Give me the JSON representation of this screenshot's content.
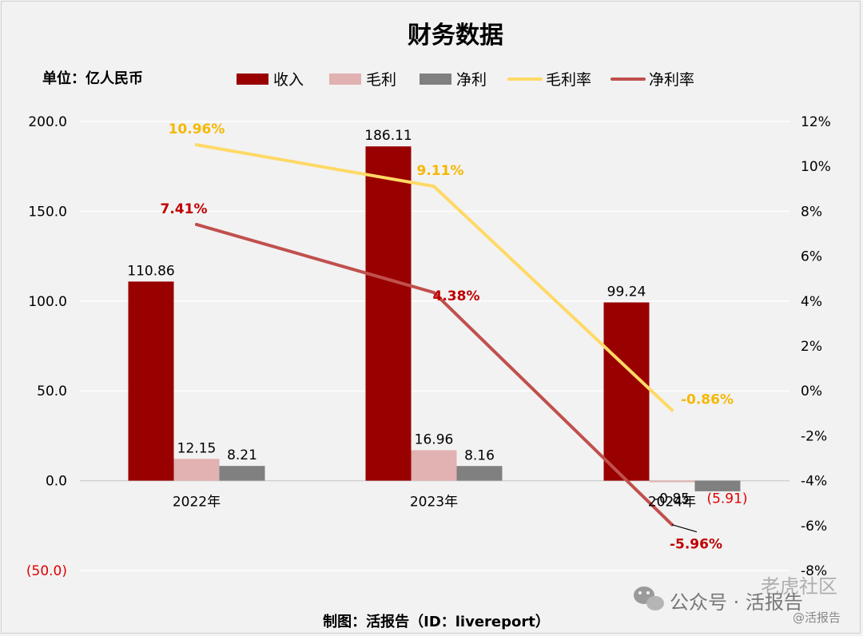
{
  "chart_data": {
    "type": "bar",
    "title": "财务数据",
    "unit_label": "单位：亿人民币",
    "categories": [
      "2022年",
      "2023年",
      "2024年"
    ],
    "series": [
      {
        "name": "收入",
        "kind": "bar",
        "axis": "left",
        "color": "#990000",
        "values": [
          110.86,
          186.11,
          99.24
        ],
        "labels": [
          "110.86",
          "186.11",
          "99.24"
        ]
      },
      {
        "name": "毛利",
        "kind": "bar",
        "axis": "left",
        "color": "#e2b1b1",
        "values": [
          12.15,
          16.96,
          -0.85
        ],
        "labels": [
          "12.15",
          "16.96",
          "-0.85"
        ]
      },
      {
        "name": "净利",
        "kind": "bar",
        "axis": "left",
        "color": "#808080",
        "values": [
          8.21,
          8.16,
          -5.91
        ],
        "labels": [
          "8.21",
          "8.16",
          "(5.91)"
        ]
      },
      {
        "name": "毛利率",
        "kind": "line",
        "axis": "right",
        "color": "#ffd966",
        "values": [
          10.96,
          9.11,
          -0.86
        ],
        "labels": [
          "10.96%",
          "9.11%",
          "-0.86%"
        ]
      },
      {
        "name": "净利率",
        "kind": "line",
        "axis": "right",
        "color": "#c0504d",
        "values": [
          7.41,
          4.38,
          -5.96
        ],
        "labels": [
          "7.41%",
          "4.38%",
          "-5.96%"
        ]
      }
    ],
    "y_left": {
      "min": -50,
      "max": 200,
      "ticks": [
        "200.0",
        "150.0",
        "100.0",
        "50.0",
        "0.0",
        "(50.0)"
      ]
    },
    "y_right": {
      "min": -8,
      "max": 12,
      "ticks": [
        "12%",
        "10%",
        "8%",
        "6%",
        "4%",
        "2%",
        "0%",
        "-2%",
        "-4%",
        "-6%",
        "-8%"
      ]
    },
    "legend_position": "top",
    "gridlines": true
  },
  "footer": {
    "credit": "制图：活报告（ID：livereport）",
    "watermark_main": "公众号 · 活报告",
    "watermark_overlay": "老虎社区",
    "watermark_small": "@活报告"
  }
}
